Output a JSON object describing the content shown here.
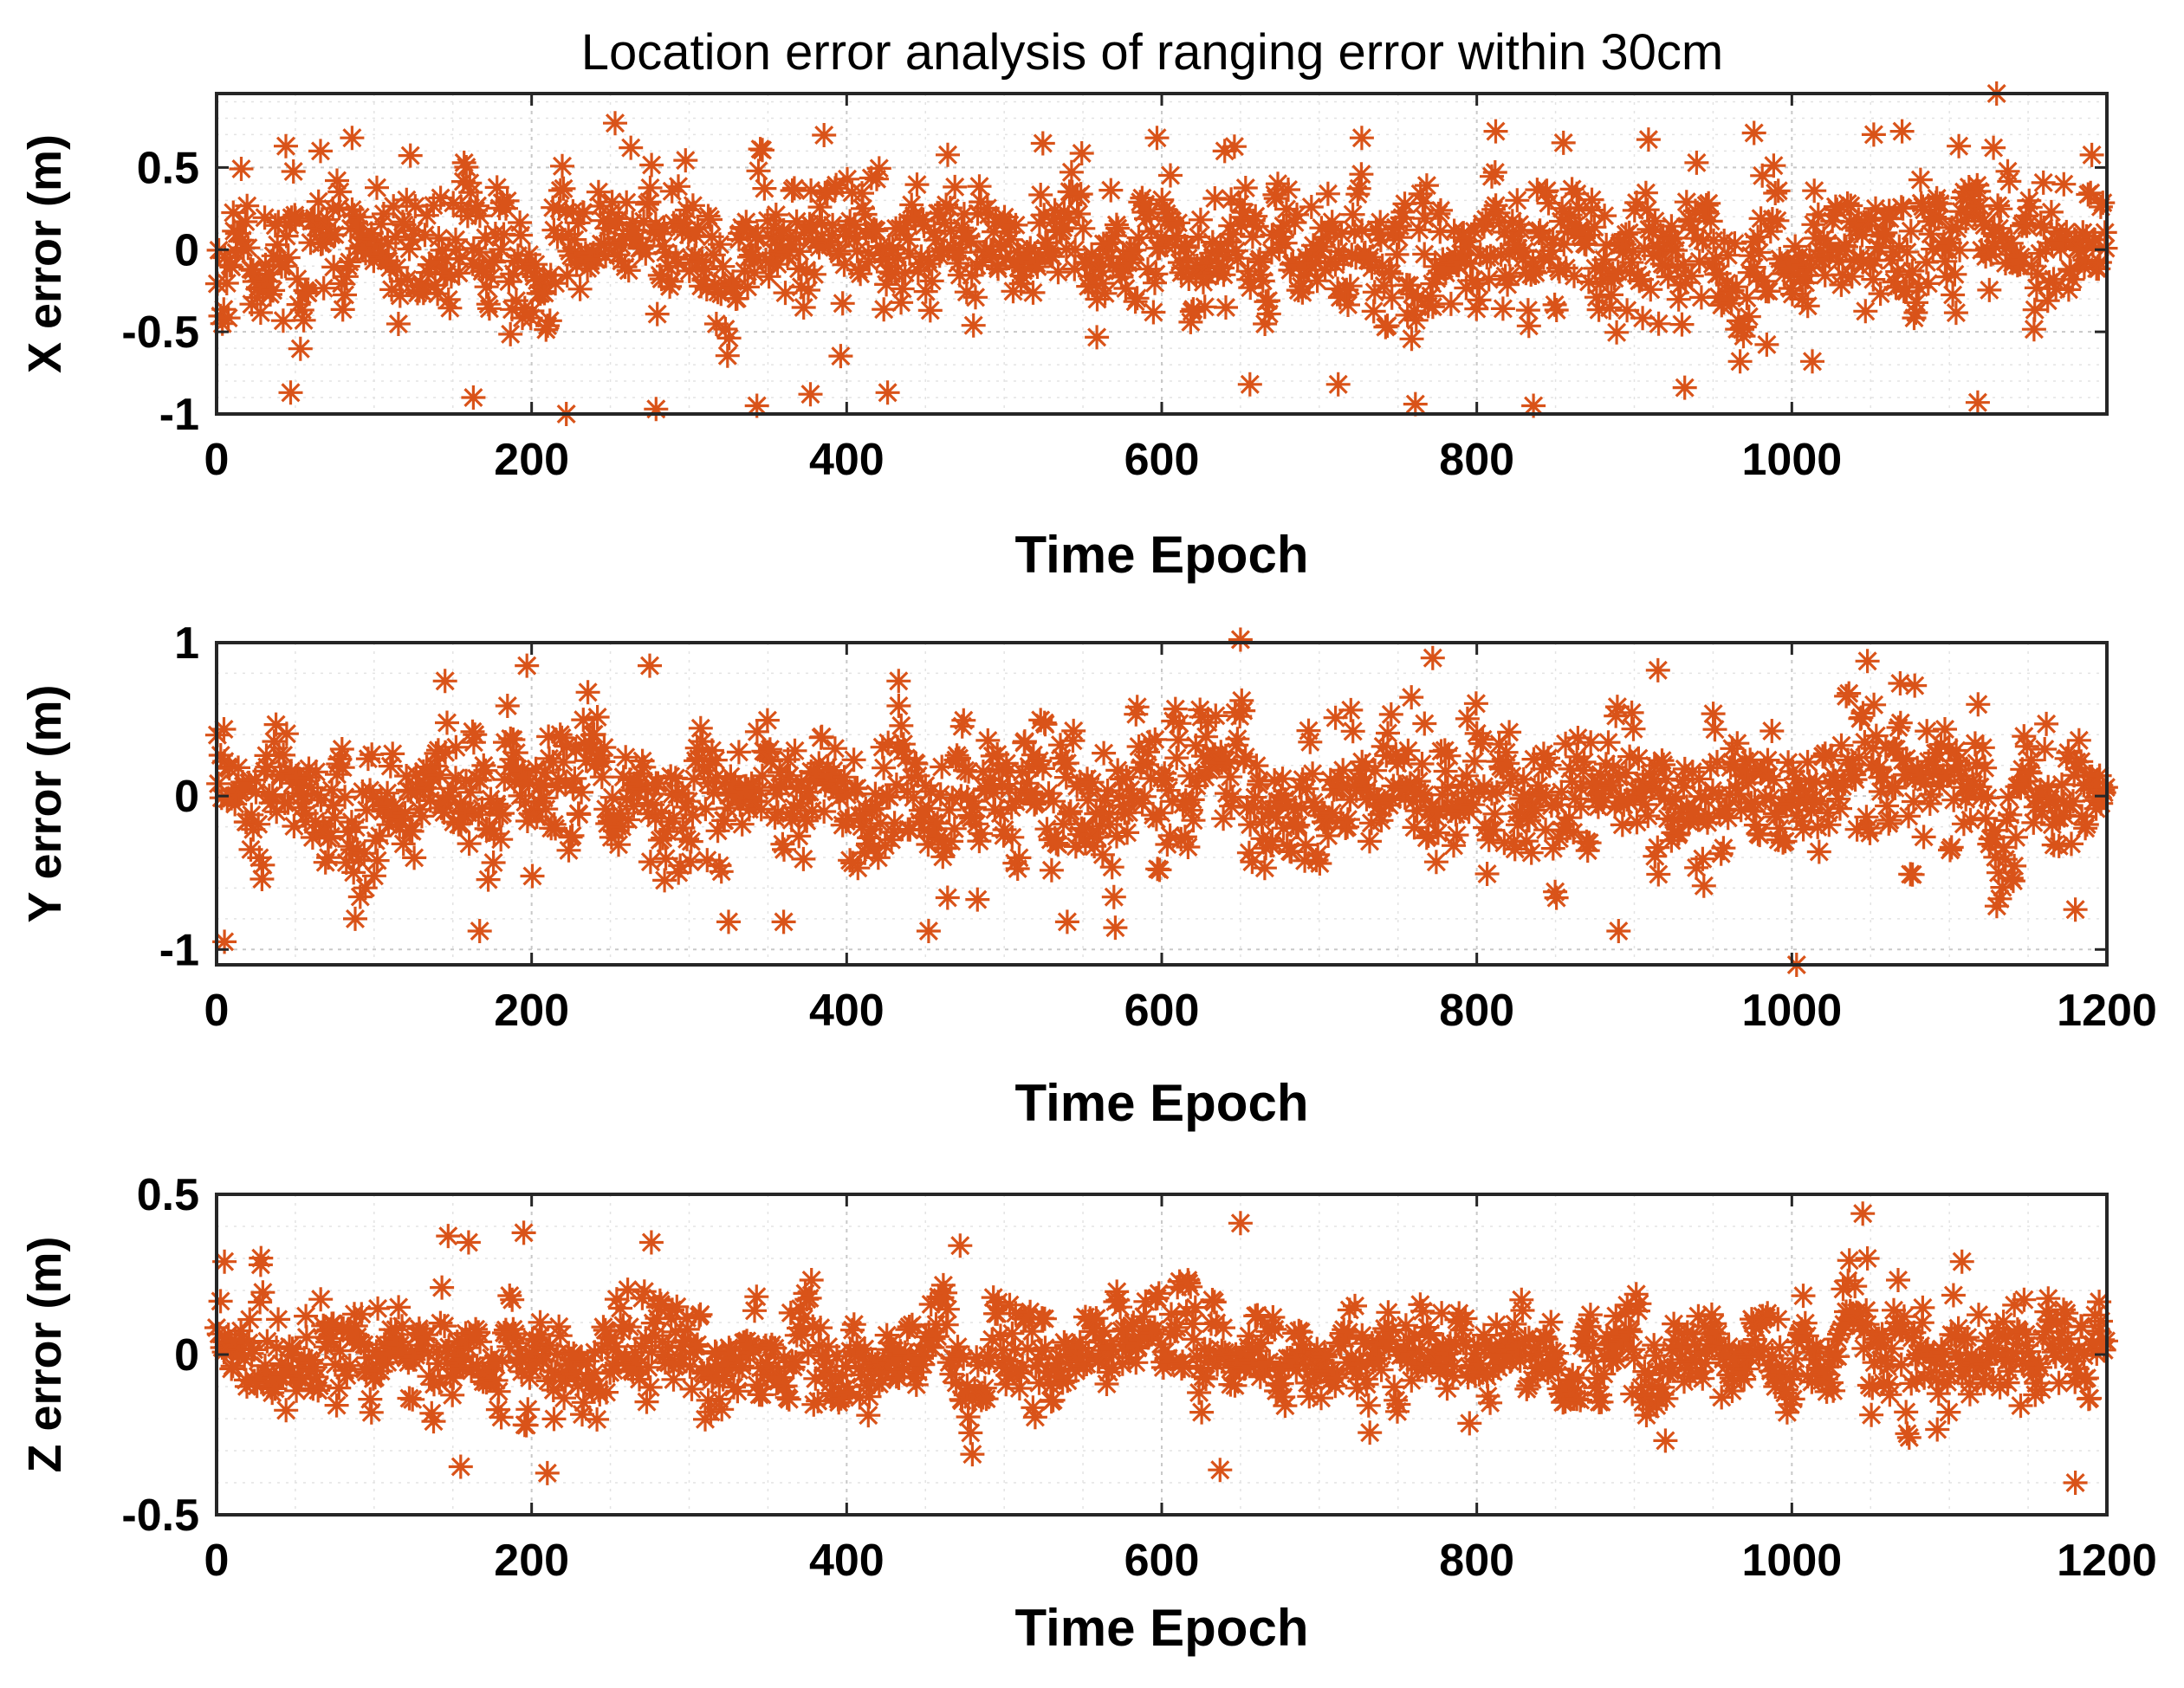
{
  "chart_data": [
    {
      "type": "scatter",
      "title": "Location error analysis of ranging error within 30cm",
      "xlabel": "Time Epoch",
      "ylabel": "X error (m)",
      "xlim": [
        0,
        1200
      ],
      "ylim": [
        -1,
        0.95
      ],
      "xticks": [
        0,
        200,
        400,
        600,
        800,
        1000
      ],
      "xtick_labels": [
        "0",
        "200",
        "400",
        "600",
        "800",
        "1000"
      ],
      "yticks": [
        -1,
        -0.5,
        0,
        0.5
      ],
      "ytick_labels": [
        "-1",
        "-0.5",
        "0",
        "0.5"
      ],
      "grid": true,
      "marker": "asterisk",
      "color": "#D95319",
      "series": [
        {
          "name": "X error",
          "n_points": 1200,
          "typical_spread": 0.3,
          "seed": 11,
          "x": [
            44,
            66,
            86,
            222,
            253,
            263,
            279,
            343,
            426,
            597,
            640,
            656,
            727,
            761,
            812,
            836,
            855,
            909,
            976,
            1052,
            1070,
            1106,
            1118,
            1128,
            1130,
            47,
            163,
            377,
            712,
            932,
            1013
          ],
          "y": [
            0.63,
            0.6,
            0.68,
            -1.0,
            0.77,
            0.62,
            -0.97,
            -0.95,
            -0.87,
            0.68,
            0.6,
            -0.82,
            0.68,
            -0.94,
            0.72,
            -0.95,
            0.65,
            0.67,
            0.71,
            0.7,
            0.72,
            0.63,
            -0.93,
            0.62,
            0.95,
            -0.87,
            -0.9,
            -0.88,
            -0.82,
            -0.84,
            -0.68
          ]
        }
      ]
    },
    {
      "type": "scatter",
      "title": "",
      "xlabel": "Time Epoch",
      "ylabel": "Y error (m)",
      "xlim": [
        0,
        1200
      ],
      "ylim": [
        -1.1,
        1.0
      ],
      "xticks": [
        0,
        200,
        400,
        600,
        800,
        1000,
        1200
      ],
      "xtick_labels": [
        "0",
        "200",
        "400",
        "600",
        "800",
        "1000",
        "1200"
      ],
      "yticks": [
        -1,
        0,
        1
      ],
      "ytick_labels": [
        "-1",
        "0",
        "1"
      ],
      "grid": true,
      "marker": "asterisk",
      "color": "#D95319",
      "series": [
        {
          "name": "Y error",
          "n_points": 1200,
          "typical_spread": 0.33,
          "seed": 23,
          "x": [
            5,
            88,
            145,
            197,
            275,
            433,
            650,
            772,
            915,
            1003,
            1048,
            1078,
            325,
            360,
            452,
            540,
            167,
            890,
            1180
          ],
          "y": [
            -0.95,
            -0.8,
            0.75,
            0.85,
            0.85,
            0.75,
            1.02,
            0.9,
            0.82,
            -1.1,
            0.88,
            0.72,
            -0.82,
            -0.82,
            -0.88,
            -0.82,
            -0.88,
            -0.88,
            -0.74
          ]
        }
      ]
    },
    {
      "type": "scatter",
      "title": "",
      "xlabel": "Time Epoch",
      "ylabel": "Z error (m)",
      "xlim": [
        0,
        1200
      ],
      "ylim": [
        -0.5,
        0.5
      ],
      "xticks": [
        0,
        200,
        400,
        600,
        800,
        1000,
        1200
      ],
      "xtick_labels": [
        "0",
        "200",
        "400",
        "600",
        "800",
        "1000",
        "1200"
      ],
      "yticks": [
        -0.5,
        0,
        0.5
      ],
      "ytick_labels": [
        "-0.5",
        "0",
        "0.5"
      ],
      "grid": true,
      "marker": "asterisk",
      "color": "#D95319",
      "series": [
        {
          "name": "Z error",
          "n_points": 1200,
          "typical_spread": 0.12,
          "seed": 37,
          "x": [
            147,
            160,
            195,
            276,
            472,
            650,
            1045,
            1048,
            1108,
            155,
            210,
            637,
            1180,
            5,
            28
          ],
          "y": [
            0.37,
            0.35,
            0.38,
            0.35,
            0.34,
            0.41,
            0.44,
            0.3,
            0.29,
            -0.35,
            -0.37,
            -0.36,
            -0.4,
            0.29,
            0.28
          ]
        }
      ]
    }
  ]
}
